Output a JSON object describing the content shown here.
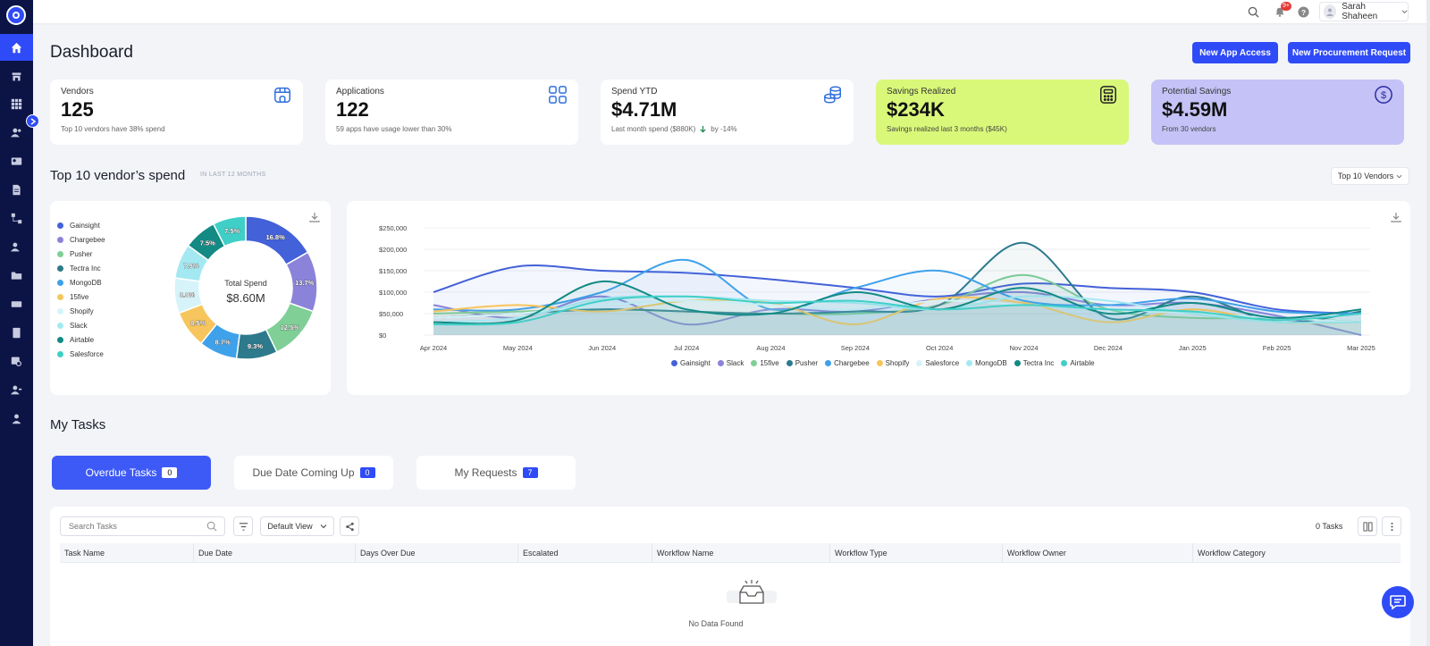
{
  "header": {
    "user_name": "Sarah Shaheen",
    "notification_badge": "9+"
  },
  "page": {
    "title": "Dashboard",
    "btn_app_access": "New App Access",
    "btn_procurement": "New Procurement Request"
  },
  "kpis": [
    {
      "label": "Vendors",
      "value": "125",
      "sub": "Top 10 vendors have 38% spend",
      "icon": "store-icon",
      "color": "#ffffff"
    },
    {
      "label": "Applications",
      "value": "122",
      "sub": "59 apps have usage lower than 30%",
      "icon": "apps-grid-icon",
      "color": "#ffffff"
    },
    {
      "label": "Spend YTD",
      "value": "$4.71M",
      "sub": "Last month spend ($880K)",
      "trend": "by -14%",
      "icon": "coins-icon",
      "color": "#ffffff"
    },
    {
      "label": "Savings Realized",
      "value": "$234K",
      "sub": "Savings realized last 3 months ($45K)",
      "icon": "calculator-icon",
      "color": "#d9f87a"
    },
    {
      "label": "Potential Savings",
      "value": "$4.59M",
      "sub": "From 30 vendors",
      "icon": "dollar-circle-icon",
      "color": "#c4c2f6"
    }
  ],
  "vendor_section": {
    "title": "Top 10 vendor’s spend",
    "subtitle": "IN LAST 12 MONTHS",
    "filter": "Top 10 Vendors"
  },
  "chart_data": [
    {
      "type": "pie",
      "categories": [
        "Gainsight",
        "Chargebee",
        "Pusher",
        "Tectra Inc",
        "MongoDB",
        "15five",
        "Shopify",
        "Slack",
        "Airtable",
        "Salesforce"
      ],
      "values": [
        16.8,
        13.7,
        12.5,
        9.3,
        8.7,
        8.5,
        8.0,
        7.9,
        7.5,
        7.5
      ],
      "data_labels": [
        "16.8%",
        "13.7%",
        "12.5%",
        "9.3%",
        "8.7%",
        "8.5%",
        "8.0%",
        "7.9%",
        "7.5%",
        "7.5%"
      ],
      "colors": [
        "#4361d8",
        "#8b83d9",
        "#7fcf96",
        "#2c7a8c",
        "#3ea1ea",
        "#f7c55d",
        "#d6f3fa",
        "#a4e9f2",
        "#138a84",
        "#3fcfc7"
      ],
      "center_label": "Total Spend",
      "center_value": "$8.60M"
    },
    {
      "type": "line",
      "x": [
        "Apr 2024",
        "May 2024",
        "Jun 2024",
        "Jul 2024",
        "Aug 2024",
        "Sep 2024",
        "Oct 2024",
        "Nov 2024",
        "Dec 2024",
        "Jan 2025",
        "Feb 2025",
        "Mar 2025"
      ],
      "ylim": [
        0,
        250000
      ],
      "yticks": [
        "$0",
        "$50,000",
        "$100,000",
        "$150,000",
        "$200,000",
        "$250,000"
      ],
      "series": [
        {
          "name": "Gainsight",
          "color": "#4361d8",
          "values": [
            100000,
            160000,
            150000,
            145000,
            130000,
            110000,
            90000,
            120000,
            110000,
            100000,
            60000,
            50000
          ]
        },
        {
          "name": "Slack",
          "color": "#8b83d9",
          "values": [
            70000,
            40000,
            90000,
            25000,
            60000,
            55000,
            85000,
            100000,
            70000,
            75000,
            45000,
            0
          ]
        },
        {
          "name": "15five",
          "color": "#7fcf96",
          "values": [
            50000,
            55000,
            60000,
            55000,
            50000,
            50000,
            70000,
            140000,
            60000,
            40000,
            40000,
            30000
          ]
        },
        {
          "name": "Pusher",
          "color": "#2c7a8c",
          "values": [
            40000,
            50000,
            60000,
            55000,
            50000,
            55000,
            70000,
            215000,
            40000,
            90000,
            30000,
            55000
          ]
        },
        {
          "name": "Chargebee",
          "color": "#3ea1ea",
          "values": [
            60000,
            60000,
            100000,
            175000,
            60000,
            110000,
            150000,
            80000,
            70000,
            85000,
            55000,
            50000
          ]
        },
        {
          "name": "Shopify",
          "color": "#f7c55d",
          "values": [
            55000,
            70000,
            55000,
            80000,
            75000,
            25000,
            85000,
            75000,
            30000,
            60000,
            30000,
            30000
          ]
        },
        {
          "name": "Salesforce",
          "color": "#d6f3fa",
          "values": [
            40000,
            50000,
            70000,
            80000,
            70000,
            60000,
            80000,
            70000,
            60000,
            50000,
            40000,
            30000
          ]
        },
        {
          "name": "MongoDB",
          "color": "#a4e9f2",
          "values": [
            30000,
            40000,
            85000,
            90000,
            80000,
            75000,
            60000,
            90000,
            80000,
            50000,
            30000,
            30000
          ]
        },
        {
          "name": "Tectra Inc",
          "color": "#138a84",
          "values": [
            30000,
            35000,
            125000,
            60000,
            50000,
            100000,
            60000,
            110000,
            50000,
            75000,
            40000,
            60000
          ]
        },
        {
          "name": "Airtable",
          "color": "#3fcfc7",
          "values": [
            25000,
            30000,
            80000,
            90000,
            75000,
            80000,
            60000,
            70000,
            60000,
            55000,
            35000,
            50000
          ]
        }
      ]
    }
  ],
  "tasks": {
    "title": "My Tasks",
    "tabs": [
      {
        "label": "Overdue Tasks",
        "count": "0"
      },
      {
        "label": "Due Date Coming Up",
        "count": "0"
      },
      {
        "label": "My Requests",
        "count": "7"
      }
    ],
    "search_placeholder": "Search Tasks",
    "view": "Default View",
    "count_label": "0 Tasks",
    "columns": [
      "Task Name",
      "Due Date",
      "Days Over Due",
      "Escalated",
      "Workflow Name",
      "Workflow Type",
      "Workflow Owner",
      "Workflow Category"
    ],
    "empty_text": "No Data Found"
  }
}
